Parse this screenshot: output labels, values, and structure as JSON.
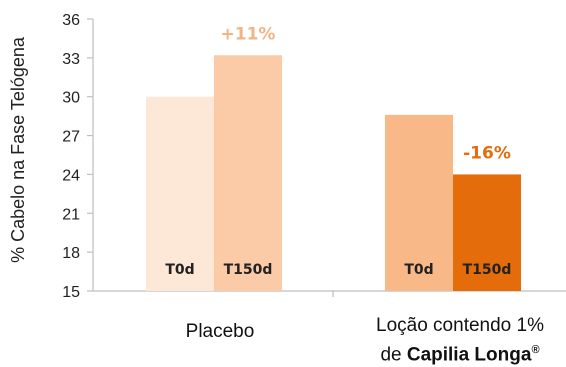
{
  "chart_data": {
    "type": "bar",
    "ylabel": "% Cabelo na Fase Telógena",
    "ylim": [
      15,
      36
    ],
    "yticks": [
      15,
      18,
      21,
      24,
      27,
      30,
      33,
      36
    ],
    "grid": false,
    "groups": [
      {
        "label": "Placebo",
        "bars": [
          {
            "label": "T0d",
            "value": 30.0,
            "color": "#fde7d6"
          },
          {
            "label": "T150d",
            "value": 33.2,
            "color": "#fbcaa6"
          }
        ],
        "annotation": {
          "text": "+11%",
          "color": "#f3b483"
        }
      },
      {
        "label_line1": "Loção contendo 1%",
        "label_line2_prefix": "de",
        "label_brand": "Capilia Longa",
        "label_mark": "®",
        "bars": [
          {
            "label": "T0d",
            "value": 28.6,
            "color": "#f9b888"
          },
          {
            "label": "T150d",
            "value": 24.0,
            "color": "#e46c0a"
          }
        ],
        "annotation": {
          "text": "-16%",
          "color": "#e46c0a"
        }
      }
    ]
  }
}
